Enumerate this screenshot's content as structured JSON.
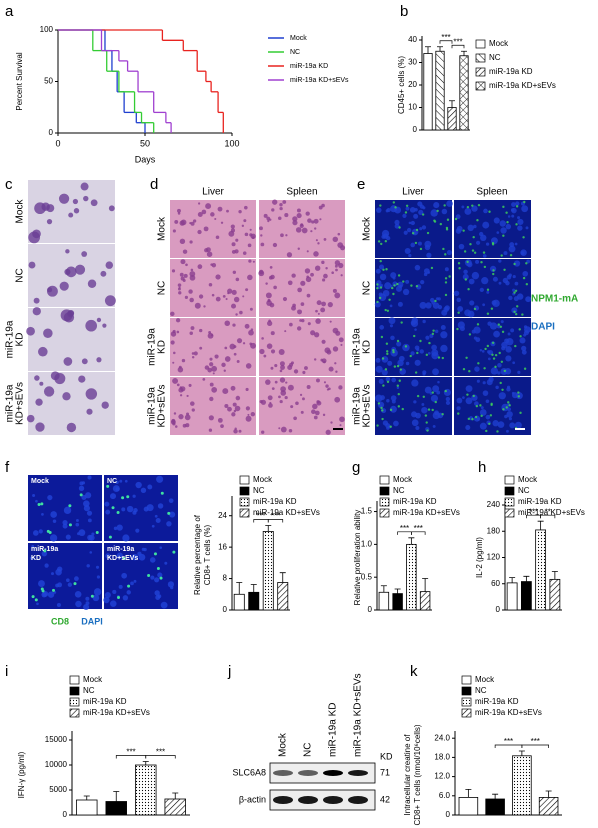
{
  "panel_labels": [
    "a",
    "b",
    "c",
    "d",
    "e",
    "f",
    "g",
    "h",
    "i",
    "j",
    "k"
  ],
  "chart_data": [
    {
      "type": "line",
      "step": true,
      "xlabel": "Days",
      "ylabel": "Percent Survival",
      "xlim": [
        0,
        100
      ],
      "xticks": [
        0,
        50,
        100
      ],
      "ylim": [
        0,
        100
      ],
      "yticks": [
        0,
        50,
        100
      ],
      "series": [
        {
          "name": "Mock",
          "color": "#1f3fcf",
          "x": [
            0,
            27,
            31,
            34,
            38,
            45,
            50
          ],
          "values": [
            100,
            80,
            60,
            40,
            20,
            10,
            0
          ]
        },
        {
          "name": "NC",
          "color": "#33cc33",
          "x": [
            0,
            20,
            28,
            35,
            44,
            48,
            55
          ],
          "values": [
            100,
            80,
            60,
            40,
            20,
            10,
            0
          ]
        },
        {
          "name": "miR-19a KD",
          "color": "#e8231f",
          "x": [
            0,
            60,
            72,
            80,
            85,
            88,
            92,
            95
          ],
          "values": [
            100,
            90,
            80,
            60,
            50,
            40,
            20,
            0
          ]
        },
        {
          "name": "miR-19a KD+sEVs",
          "color": "#a040d0",
          "x": [
            0,
            25,
            35,
            40,
            46,
            55,
            62,
            65
          ],
          "values": [
            100,
            80,
            70,
            60,
            40,
            20,
            10,
            0
          ]
        }
      ]
    },
    {
      "type": "bar",
      "ylabel": "CD45+ cells (%)",
      "categories": [
        "Mock",
        "NC",
        "miR-19a KD",
        "miR-19a KD+sEVs"
      ],
      "values": [
        34,
        35,
        10,
        33
      ],
      "errors": [
        3,
        2,
        3,
        2
      ],
      "patterns": [
        "white",
        "backslash",
        "slash",
        "cross"
      ],
      "ylim": [
        0,
        40
      ],
      "yticks": [
        0,
        10,
        20,
        30,
        40
      ],
      "significance": [
        {
          "text": "***",
          "between": [
            1,
            2
          ]
        },
        {
          "text": "***",
          "between": [
            2,
            3
          ]
        }
      ]
    },
    {
      "type": "bar",
      "ylabel": [
        "Relative percentage of",
        "CD8+ T cells (%)"
      ],
      "categories": [
        "Mock",
        "NC",
        "miR-19a KD",
        "miR-19a KD+sEVs"
      ],
      "values": [
        4,
        4.5,
        20,
        7
      ],
      "errors": [
        3,
        2,
        1.5,
        2.5
      ],
      "patterns": [
        "white",
        "black",
        "dots",
        "slash"
      ],
      "ylim": [
        0,
        28
      ],
      "yticks": [
        0,
        8,
        16,
        24
      ],
      "significance": [
        {
          "text": "***",
          "between": [
            1,
            2
          ]
        },
        {
          "text": "***",
          "between": [
            2,
            3
          ]
        }
      ]
    },
    {
      "type": "bar",
      "ylabel": "Relative proliferation ability",
      "categories": [
        "Mock",
        "NC",
        "miR-19a KD",
        "miR-19a KD+sEVs"
      ],
      "values": [
        0.27,
        0.25,
        1.0,
        0.28
      ],
      "errors": [
        0.1,
        0.07,
        0.1,
        0.2
      ],
      "patterns": [
        "white",
        "black",
        "dots",
        "slash"
      ],
      "ylim": [
        0,
        1.6
      ],
      "yticks": [
        0,
        0.5,
        {
          "value": 1,
          "label": "1.0"
        },
        1.5
      ],
      "significance": [
        {
          "text": "***",
          "between": [
            1,
            2
          ]
        },
        {
          "text": "***",
          "between": [
            2,
            3
          ]
        }
      ]
    },
    {
      "type": "bar",
      "ylabel": "IL-2 (pg/ml)",
      "categories": [
        "Mock",
        "NC",
        "miR-19a KD",
        "miR-19a KD+sEVs"
      ],
      "values": [
        62,
        65,
        183,
        70
      ],
      "errors": [
        12,
        12,
        20,
        18
      ],
      "patterns": [
        "white",
        "black",
        "dots",
        "slash"
      ],
      "ylim": [
        0,
        240
      ],
      "yticks": [
        0,
        60,
        120,
        180,
        240
      ],
      "significance": [
        {
          "text": "***",
          "between": [
            1,
            2
          ]
        },
        {
          "text": "**",
          "between": [
            2,
            3
          ]
        }
      ]
    },
    {
      "type": "bar",
      "ylabel": "IFN-γ (pg/ml)",
      "categories": [
        "Mock",
        "NC",
        "miR-19a KD",
        "miR-19a KD+sEVs"
      ],
      "values": [
        3000,
        2700,
        10000,
        3200
      ],
      "errors": [
        800,
        2000,
        700,
        1200
      ],
      "patterns": [
        "white",
        "black",
        "dots",
        "slash"
      ],
      "ylim": [
        0,
        16000
      ],
      "yticks": [
        0,
        5000,
        10000,
        15000
      ],
      "significance": [
        {
          "text": "***",
          "between": [
            1,
            2
          ]
        },
        {
          "text": "***",
          "between": [
            2,
            3
          ]
        }
      ]
    },
    {
      "type": "bar",
      "ylabel": [
        "Intracellular creatine of",
        "CD8+ T cells (nmol/10⁶cells)"
      ],
      "categories": [
        "Mock",
        "NC",
        "miR-19a KD",
        "miR-19a KD+sEVs"
      ],
      "values": [
        5.5,
        5,
        18.5,
        5.5
      ],
      "errors": [
        2.5,
        1.5,
        1.5,
        2
      ],
      "patterns": [
        "white",
        "black",
        "dots",
        "slash"
      ],
      "ylim": [
        0,
        25
      ],
      "yticks": [
        0,
        {
          "value": 6,
          "label": "6.0"
        },
        {
          "value": 12,
          "label": "12.0"
        },
        {
          "value": 18,
          "label": "18.0"
        },
        {
          "value": 24,
          "label": "24.0"
        }
      ],
      "significance": [
        {
          "text": "***",
          "between": [
            1,
            2
          ]
        },
        {
          "text": "***",
          "between": [
            2,
            3
          ]
        }
      ]
    }
  ],
  "images": {
    "c": {
      "rows": [
        [
          "Mock"
        ],
        [
          "NC"
        ],
        [
          "miR-19a",
          "KD"
        ],
        [
          "miR-19a",
          "KD+sEVs"
        ]
      ]
    },
    "d": {
      "columns": [
        "Liver",
        "Spleen"
      ],
      "rows": [
        [
          "Mock"
        ],
        [
          "NC"
        ],
        [
          "miR-19a",
          "KD"
        ],
        [
          "miR-19a",
          "KD+sEVs"
        ]
      ]
    },
    "e": {
      "columns": [
        "Liver",
        "Spleen"
      ],
      "rows": [
        [
          "Mock"
        ],
        [
          "NC"
        ],
        [
          "miR-19a",
          "KD"
        ],
        [
          "miR-19a",
          "KD+sEVs"
        ]
      ],
      "stains": [
        "NPM1-mA",
        "DAPI"
      ]
    },
    "f": {
      "tiles": [
        [
          "Mock"
        ],
        [
          "NC"
        ],
        [
          "miR-19a",
          "KD"
        ],
        [
          "miR-19a",
          "KD+sEVs"
        ]
      ],
      "stains": [
        "CD8",
        "DAPI"
      ]
    }
  },
  "blot": {
    "lanes": [
      "Mock",
      "NC",
      "miR-19a KD",
      "miR-19a KD+sEVs"
    ],
    "rows": [
      "SLC6A8",
      "β-actin"
    ],
    "size_header": "KD",
    "sizes": [
      "71",
      "42"
    ]
  }
}
